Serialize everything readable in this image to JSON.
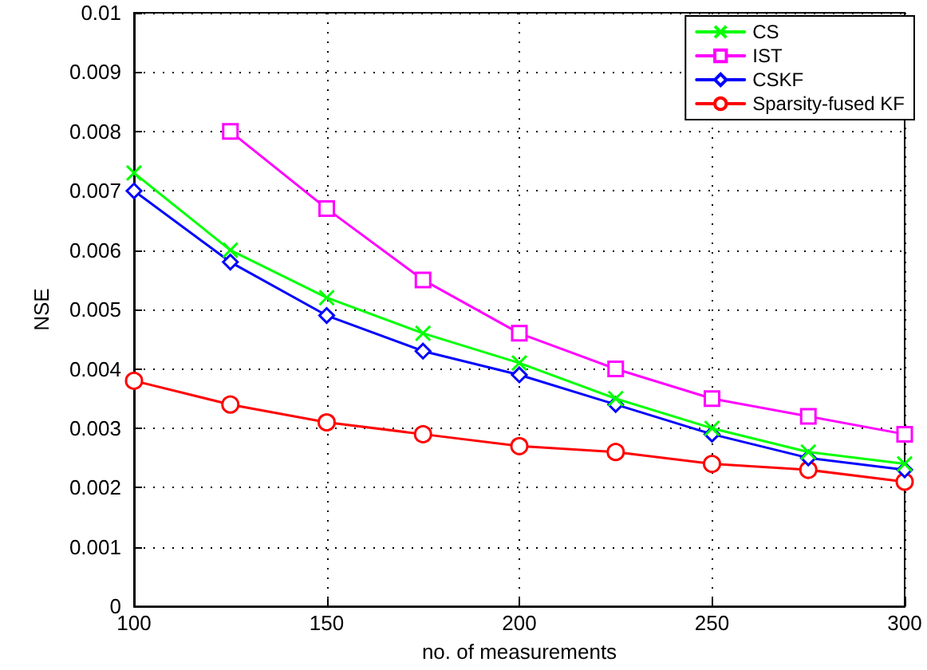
{
  "chart_data": {
    "type": "line",
    "xlabel": "no. of measurements",
    "ylabel": "NSE",
    "x": [
      100,
      125,
      150,
      175,
      200,
      225,
      250,
      275,
      300
    ],
    "xlim": [
      100,
      300
    ],
    "xticks": [
      100,
      150,
      200,
      250,
      300
    ],
    "ylim": [
      0,
      0.01
    ],
    "yticks": [
      0,
      0.001,
      0.002,
      0.003,
      0.004,
      0.005,
      0.006,
      0.007,
      0.008,
      0.009,
      0.01
    ],
    "grid": true,
    "legend": "top right",
    "line_style": "solid",
    "series": [
      {
        "name": "CS",
        "color": "#00ff00",
        "marker": "cross",
        "values": [
          0.0073,
          0.006,
          0.0052,
          0.0046,
          0.0041,
          0.0035,
          0.003,
          0.0026,
          0.0024
        ]
      },
      {
        "name": "IST",
        "color": "#ff00ff",
        "marker": "square",
        "values": [
          null,
          0.008,
          0.0067,
          0.0055,
          0.0046,
          0.004,
          0.0035,
          0.0032,
          0.0029
        ]
      },
      {
        "name": "CSKF",
        "color": "#0000ff",
        "marker": "diamond",
        "values": [
          0.007,
          0.0058,
          0.0049,
          0.0043,
          0.0039,
          0.0034,
          0.0029,
          0.0025,
          0.0023
        ]
      },
      {
        "name": "Sparsity-fused KF",
        "color": "#ff0000",
        "marker": "circle",
        "values": [
          0.0038,
          0.0034,
          0.0031,
          0.0029,
          0.0027,
          0.0026,
          0.0024,
          0.0023,
          0.0021
        ]
      }
    ]
  }
}
